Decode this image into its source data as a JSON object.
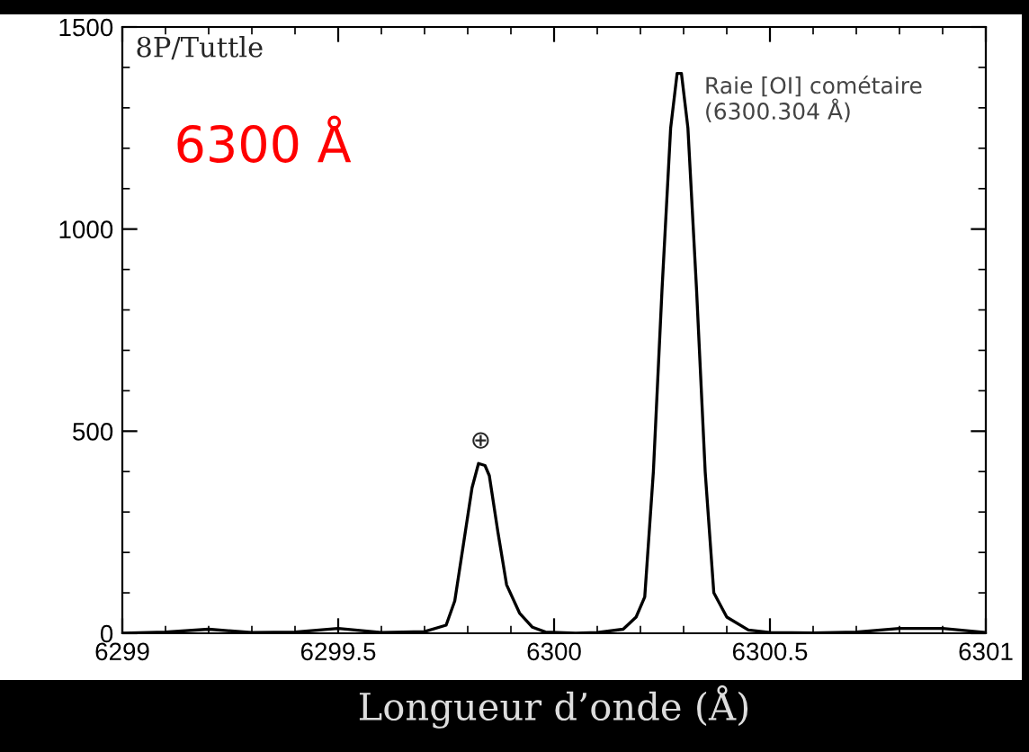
{
  "chart_data": {
    "type": "line",
    "xlabel": "Longueur d’onde (Å)",
    "x": [
      6299.0,
      6299.1,
      6299.2,
      6299.3,
      6299.4,
      6299.5,
      6299.6,
      6299.7,
      6299.75,
      6299.77,
      6299.79,
      6299.81,
      6299.825,
      6299.84,
      6299.85,
      6299.87,
      6299.89,
      6299.92,
      6299.95,
      6299.98,
      6300.05,
      6300.1,
      6300.16,
      6300.19,
      6300.21,
      6300.23,
      6300.25,
      6300.27,
      6300.285,
      6300.295,
      6300.31,
      6300.33,
      6300.35,
      6300.37,
      6300.4,
      6300.45,
      6300.5,
      6300.6,
      6300.7,
      6300.8,
      6300.9,
      6301.0
    ],
    "series": [
      {
        "color": "#000000",
        "values": [
          0,
          3,
          10,
          2,
          3,
          12,
          2,
          4,
          20,
          80,
          220,
          360,
          420,
          415,
          390,
          250,
          120,
          50,
          15,
          3,
          0,
          2,
          10,
          40,
          90,
          400,
          850,
          1250,
          1385,
          1385,
          1250,
          850,
          400,
          100,
          40,
          8,
          2,
          1,
          3,
          12,
          12,
          2
        ]
      }
    ],
    "xlim": [
      6299,
      6301
    ],
    "xticks": [
      6299,
      6299.5,
      6300,
      6300.5,
      6301
    ],
    "ylim": [
      0,
      1500
    ],
    "yticks": [
      0,
      500,
      1000,
      1500
    ],
    "grid": false,
    "legend": false,
    "marker": "none",
    "line_style": "solid",
    "annotations": [
      "8P/Tuttle",
      "6300 Å",
      {
        "text": "⊕",
        "x": 6299.83,
        "y": 420
      },
      {
        "text": "Raie [OI] cométaire\n(6300.304 Å)",
        "x": 6300.29,
        "y": 1390
      }
    ]
  }
}
